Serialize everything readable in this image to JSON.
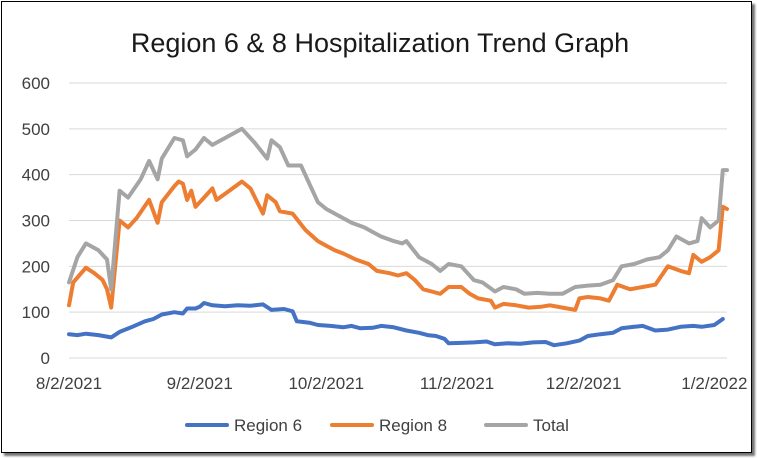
{
  "colors": {
    "region6": "#4472C4",
    "region8": "#ED7D31",
    "total": "#A5A5A5",
    "grid": "#D9D9D9",
    "text": "#404040"
  },
  "chart_data": {
    "type": "line",
    "title": "Region 6 & 8 Hospitalization Trend Graph",
    "xlabel": "",
    "ylabel": "",
    "grid": true,
    "legend_position": "bottom",
    "ylim": [
      0,
      600
    ],
    "yticks": [
      0,
      100,
      200,
      300,
      400,
      500,
      600
    ],
    "xlim": [
      "2021-08-02",
      "2022-01-05"
    ],
    "xticks": [
      {
        "date": "2021-08-02",
        "label": "8/2/2021"
      },
      {
        "date": "2021-09-02",
        "label": "9/2/2021"
      },
      {
        "date": "2021-10-02",
        "label": "10/2/2021"
      },
      {
        "date": "2021-11-02",
        "label": "11/2/2021"
      },
      {
        "date": "2021-12-02",
        "label": "12/2/2021"
      },
      {
        "date": "2022-01-02",
        "label": "1/2/2022"
      }
    ],
    "series": [
      {
        "name": "Region 6",
        "color": "#4472C4",
        "points": [
          [
            "2021-08-02",
            52
          ],
          [
            "2021-08-04",
            50
          ],
          [
            "2021-08-06",
            53
          ],
          [
            "2021-08-09",
            50
          ],
          [
            "2021-08-12",
            45
          ],
          [
            "2021-08-14",
            57
          ],
          [
            "2021-08-17",
            68
          ],
          [
            "2021-08-20",
            80
          ],
          [
            "2021-08-22",
            85
          ],
          [
            "2021-08-24",
            95
          ],
          [
            "2021-08-27",
            100
          ],
          [
            "2021-08-29",
            97
          ],
          [
            "2021-08-30",
            108
          ],
          [
            "2021-09-01",
            108
          ],
          [
            "2021-09-02",
            112
          ],
          [
            "2021-09-03",
            120
          ],
          [
            "2021-09-05",
            115
          ],
          [
            "2021-09-08",
            113
          ],
          [
            "2021-09-11",
            115
          ],
          [
            "2021-09-14",
            114
          ],
          [
            "2021-09-17",
            117
          ],
          [
            "2021-09-19",
            105
          ],
          [
            "2021-09-22",
            107
          ],
          [
            "2021-09-24",
            102
          ],
          [
            "2021-09-25",
            80
          ],
          [
            "2021-09-28",
            77
          ],
          [
            "2021-09-30",
            72
          ],
          [
            "2021-10-03",
            70
          ],
          [
            "2021-10-06",
            67
          ],
          [
            "2021-10-08",
            70
          ],
          [
            "2021-10-10",
            65
          ],
          [
            "2021-10-13",
            66
          ],
          [
            "2021-10-15",
            70
          ],
          [
            "2021-10-18",
            67
          ],
          [
            "2021-10-21",
            60
          ],
          [
            "2021-10-24",
            55
          ],
          [
            "2021-10-26",
            50
          ],
          [
            "2021-10-28",
            48
          ],
          [
            "2021-10-30",
            42
          ],
          [
            "2021-10-31",
            32
          ],
          [
            "2021-11-03",
            33
          ],
          [
            "2021-11-06",
            34
          ],
          [
            "2021-11-09",
            36
          ],
          [
            "2021-11-11",
            30
          ],
          [
            "2021-11-14",
            32
          ],
          [
            "2021-11-17",
            31
          ],
          [
            "2021-11-20",
            34
          ],
          [
            "2021-11-23",
            35
          ],
          [
            "2021-11-25",
            28
          ],
          [
            "2021-11-28",
            32
          ],
          [
            "2021-12-01",
            38
          ],
          [
            "2021-12-03",
            48
          ],
          [
            "2021-12-06",
            52
          ],
          [
            "2021-12-09",
            55
          ],
          [
            "2021-12-11",
            65
          ],
          [
            "2021-12-14",
            68
          ],
          [
            "2021-12-16",
            70
          ],
          [
            "2021-12-19",
            60
          ],
          [
            "2021-12-22",
            62
          ],
          [
            "2021-12-25",
            68
          ],
          [
            "2021-12-28",
            70
          ],
          [
            "2021-12-30",
            68
          ],
          [
            "2022-01-02",
            72
          ],
          [
            "2022-01-04",
            85
          ]
        ]
      },
      {
        "name": "Region 8",
        "color": "#ED7D31",
        "points": [
          [
            "2021-08-02",
            115
          ],
          [
            "2021-08-03",
            165
          ],
          [
            "2021-08-06",
            197
          ],
          [
            "2021-08-08",
            185
          ],
          [
            "2021-08-10",
            170
          ],
          [
            "2021-08-11",
            150
          ],
          [
            "2021-08-12",
            110
          ],
          [
            "2021-08-14",
            300
          ],
          [
            "2021-08-16",
            285
          ],
          [
            "2021-08-18",
            305
          ],
          [
            "2021-08-21",
            345
          ],
          [
            "2021-08-23",
            295
          ],
          [
            "2021-08-24",
            340
          ],
          [
            "2021-08-27",
            375
          ],
          [
            "2021-08-28",
            385
          ],
          [
            "2021-08-29",
            380
          ],
          [
            "2021-08-30",
            345
          ],
          [
            "2021-08-31",
            365
          ],
          [
            "2021-09-01",
            330
          ],
          [
            "2021-09-03",
            350
          ],
          [
            "2021-09-05",
            370
          ],
          [
            "2021-09-06",
            345
          ],
          [
            "2021-09-09",
            365
          ],
          [
            "2021-09-12",
            385
          ],
          [
            "2021-09-14",
            370
          ],
          [
            "2021-09-17",
            315
          ],
          [
            "2021-09-18",
            355
          ],
          [
            "2021-09-20",
            340
          ],
          [
            "2021-09-21",
            320
          ],
          [
            "2021-09-24",
            315
          ],
          [
            "2021-09-27",
            280
          ],
          [
            "2021-09-30",
            255
          ],
          [
            "2021-10-02",
            245
          ],
          [
            "2021-10-04",
            235
          ],
          [
            "2021-10-06",
            228
          ],
          [
            "2021-10-09",
            215
          ],
          [
            "2021-10-12",
            205
          ],
          [
            "2021-10-14",
            190
          ],
          [
            "2021-10-17",
            185
          ],
          [
            "2021-10-19",
            180
          ],
          [
            "2021-10-21",
            185
          ],
          [
            "2021-10-23",
            170
          ],
          [
            "2021-10-25",
            150
          ],
          [
            "2021-10-27",
            145
          ],
          [
            "2021-10-29",
            140
          ],
          [
            "2021-10-31",
            155
          ],
          [
            "2021-11-03",
            155
          ],
          [
            "2021-11-05",
            140
          ],
          [
            "2021-11-07",
            130
          ],
          [
            "2021-11-10",
            125
          ],
          [
            "2021-11-11",
            110
          ],
          [
            "2021-11-13",
            118
          ],
          [
            "2021-11-16",
            115
          ],
          [
            "2021-11-19",
            110
          ],
          [
            "2021-11-22",
            112
          ],
          [
            "2021-11-24",
            115
          ],
          [
            "2021-11-27",
            110
          ],
          [
            "2021-11-30",
            105
          ],
          [
            "2021-12-01",
            130
          ],
          [
            "2021-12-03",
            133
          ],
          [
            "2021-12-06",
            130
          ],
          [
            "2021-12-08",
            125
          ],
          [
            "2021-12-10",
            160
          ],
          [
            "2021-12-13",
            150
          ],
          [
            "2021-12-16",
            155
          ],
          [
            "2021-12-19",
            160
          ],
          [
            "2021-12-22",
            200
          ],
          [
            "2021-12-25",
            190
          ],
          [
            "2021-12-27",
            185
          ],
          [
            "2021-12-28",
            225
          ],
          [
            "2021-12-30",
            210
          ],
          [
            "2022-01-01",
            220
          ],
          [
            "2022-01-03",
            235
          ],
          [
            "2022-01-04",
            330
          ],
          [
            "2022-01-05",
            325
          ]
        ]
      },
      {
        "name": "Total",
        "color": "#A5A5A5",
        "points": [
          [
            "2021-08-02",
            165
          ],
          [
            "2021-08-04",
            220
          ],
          [
            "2021-08-06",
            250
          ],
          [
            "2021-08-09",
            235
          ],
          [
            "2021-08-11",
            215
          ],
          [
            "2021-08-12",
            150
          ],
          [
            "2021-08-14",
            365
          ],
          [
            "2021-08-16",
            350
          ],
          [
            "2021-08-19",
            390
          ],
          [
            "2021-08-21",
            430
          ],
          [
            "2021-08-23",
            390
          ],
          [
            "2021-08-24",
            435
          ],
          [
            "2021-08-27",
            480
          ],
          [
            "2021-08-29",
            475
          ],
          [
            "2021-08-30",
            440
          ],
          [
            "2021-09-01",
            455
          ],
          [
            "2021-09-03",
            480
          ],
          [
            "2021-09-05",
            465
          ],
          [
            "2021-09-08",
            480
          ],
          [
            "2021-09-12",
            500
          ],
          [
            "2021-09-15",
            470
          ],
          [
            "2021-09-18",
            435
          ],
          [
            "2021-09-19",
            475
          ],
          [
            "2021-09-21",
            460
          ],
          [
            "2021-09-23",
            420
          ],
          [
            "2021-09-26",
            420
          ],
          [
            "2021-09-28",
            380
          ],
          [
            "2021-09-30",
            340
          ],
          [
            "2021-10-02",
            325
          ],
          [
            "2021-10-05",
            310
          ],
          [
            "2021-10-08",
            295
          ],
          [
            "2021-10-11",
            285
          ],
          [
            "2021-10-13",
            275
          ],
          [
            "2021-10-15",
            265
          ],
          [
            "2021-10-18",
            255
          ],
          [
            "2021-10-20",
            250
          ],
          [
            "2021-10-21",
            255
          ],
          [
            "2021-10-24",
            220
          ],
          [
            "2021-10-27",
            205
          ],
          [
            "2021-10-29",
            190
          ],
          [
            "2021-10-31",
            205
          ],
          [
            "2021-11-03",
            200
          ],
          [
            "2021-11-06",
            170
          ],
          [
            "2021-11-08",
            165
          ],
          [
            "2021-11-11",
            145
          ],
          [
            "2021-11-13",
            155
          ],
          [
            "2021-11-16",
            150
          ],
          [
            "2021-11-18",
            140
          ],
          [
            "2021-11-21",
            142
          ],
          [
            "2021-11-24",
            140
          ],
          [
            "2021-11-27",
            140
          ],
          [
            "2021-11-30",
            155
          ],
          [
            "2021-12-03",
            158
          ],
          [
            "2021-12-06",
            160
          ],
          [
            "2021-12-09",
            170
          ],
          [
            "2021-12-11",
            200
          ],
          [
            "2021-12-14",
            205
          ],
          [
            "2021-12-17",
            215
          ],
          [
            "2021-12-20",
            220
          ],
          [
            "2021-12-22",
            235
          ],
          [
            "2021-12-24",
            265
          ],
          [
            "2021-12-27",
            250
          ],
          [
            "2021-12-29",
            255
          ],
          [
            "2021-12-30",
            305
          ],
          [
            "2022-01-01",
            285
          ],
          [
            "2022-01-03",
            300
          ],
          [
            "2022-01-04",
            410
          ],
          [
            "2022-01-05",
            410
          ]
        ]
      }
    ]
  }
}
